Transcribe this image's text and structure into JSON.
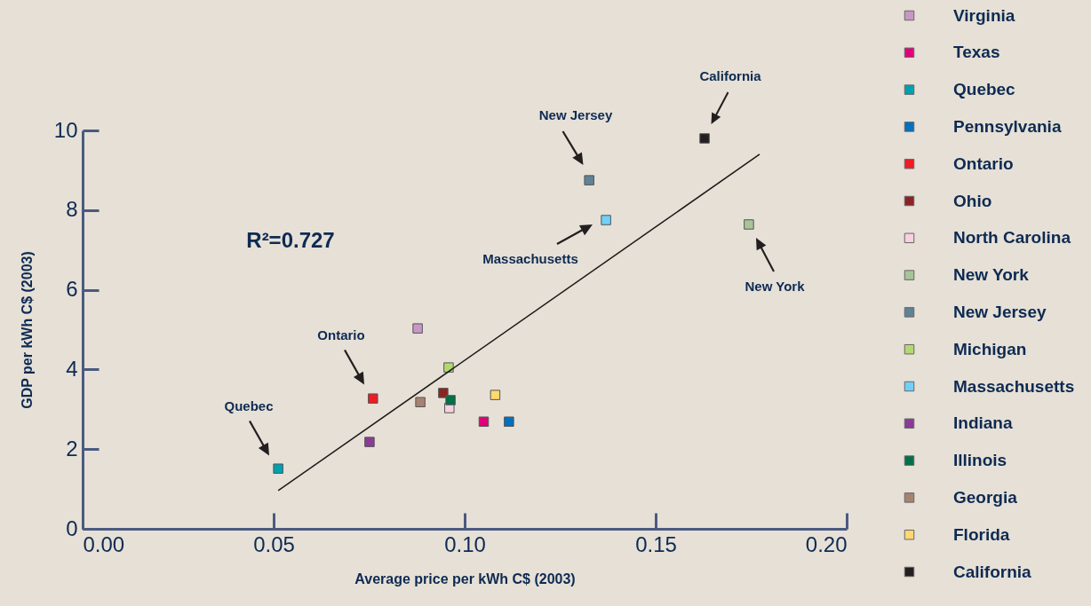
{
  "chart_data": {
    "type": "scatter",
    "xlabel": "Average price per kWh C$ (2003)",
    "ylabel": "GDP per kWh C$ (2003)",
    "xlim": [
      0,
      0.2
    ],
    "xticks": [
      {
        "value": 0,
        "label": "0.00"
      },
      {
        "value": 0.05,
        "label": "0.05"
      },
      {
        "value": 0.1,
        "label": "0.10"
      },
      {
        "value": 0.15,
        "label": "0.15"
      },
      {
        "value": 0.2,
        "label": "0.20"
      }
    ],
    "ylim": [
      0,
      10
    ],
    "yticks": [
      0,
      2,
      4,
      6,
      8,
      10
    ],
    "grid": false,
    "legend": "right",
    "marker": "square",
    "series": [
      {
        "name": "Virginia",
        "color": "#c897c8",
        "x": [
          0.0877
        ],
        "values": [
          5.03
        ]
      },
      {
        "name": "Texas",
        "color": "#e0007a",
        "x": [
          0.105
        ],
        "values": [
          2.69
        ]
      },
      {
        "name": "Quebec",
        "color": "#00a0b0",
        "x": [
          0.0512
        ],
        "values": [
          1.51
        ]
      },
      {
        "name": "Pennsylvania",
        "color": "#0070c0",
        "x": [
          0.1116
        ],
        "values": [
          2.69
        ]
      },
      {
        "name": "Ontario",
        "color": "#ee1c24",
        "x": [
          0.076
        ],
        "values": [
          3.27
        ]
      },
      {
        "name": "Ohio",
        "color": "#8b2323",
        "x": [
          0.0944
        ],
        "values": [
          3.41
        ]
      },
      {
        "name": "North Carolina",
        "color": "#f8d0e0",
        "x": [
          0.096
        ],
        "values": [
          3.03
        ]
      },
      {
        "name": "New York",
        "color": "#a8c498",
        "x": [
          0.1744
        ],
        "values": [
          7.64
        ]
      },
      {
        "name": "New Jersey",
        "color": "#5f8296",
        "x": [
          0.1326
        ],
        "values": [
          8.75
        ]
      },
      {
        "name": "Michigan",
        "color": "#b4d870",
        "x": [
          0.0958
        ],
        "values": [
          4.05
        ]
      },
      {
        "name": "Massachusetts",
        "color": "#70d0f8",
        "x": [
          0.137
        ],
        "values": [
          7.75
        ]
      },
      {
        "name": "Indiana",
        "color": "#8b3a96",
        "x": [
          0.0751
        ],
        "values": [
          2.18
        ]
      },
      {
        "name": "Illinois",
        "color": "#00704a",
        "x": [
          0.0963
        ],
        "values": [
          3.23
        ]
      },
      {
        "name": "Georgia",
        "color": "#a88270",
        "x": [
          0.0884
        ],
        "values": [
          3.18
        ]
      },
      {
        "name": "Florida",
        "color": "#ffd870",
        "x": [
          0.108
        ],
        "values": [
          3.36
        ]
      },
      {
        "name": "California",
        "color": "#231f20",
        "x": [
          0.1628
        ],
        "values": [
          9.8
        ]
      },
      {
        "type": "line",
        "color": "#1a1a1a",
        "marker": "none",
        "x": [
          0.0512,
          0.1772
        ],
        "values": [
          0.96,
          9.4
        ]
      }
    ],
    "annotations": [
      "Quebec",
      "Ontario",
      "New Jersey",
      "California",
      "Massachusetts",
      "New York",
      "R²=0.727"
    ]
  }
}
